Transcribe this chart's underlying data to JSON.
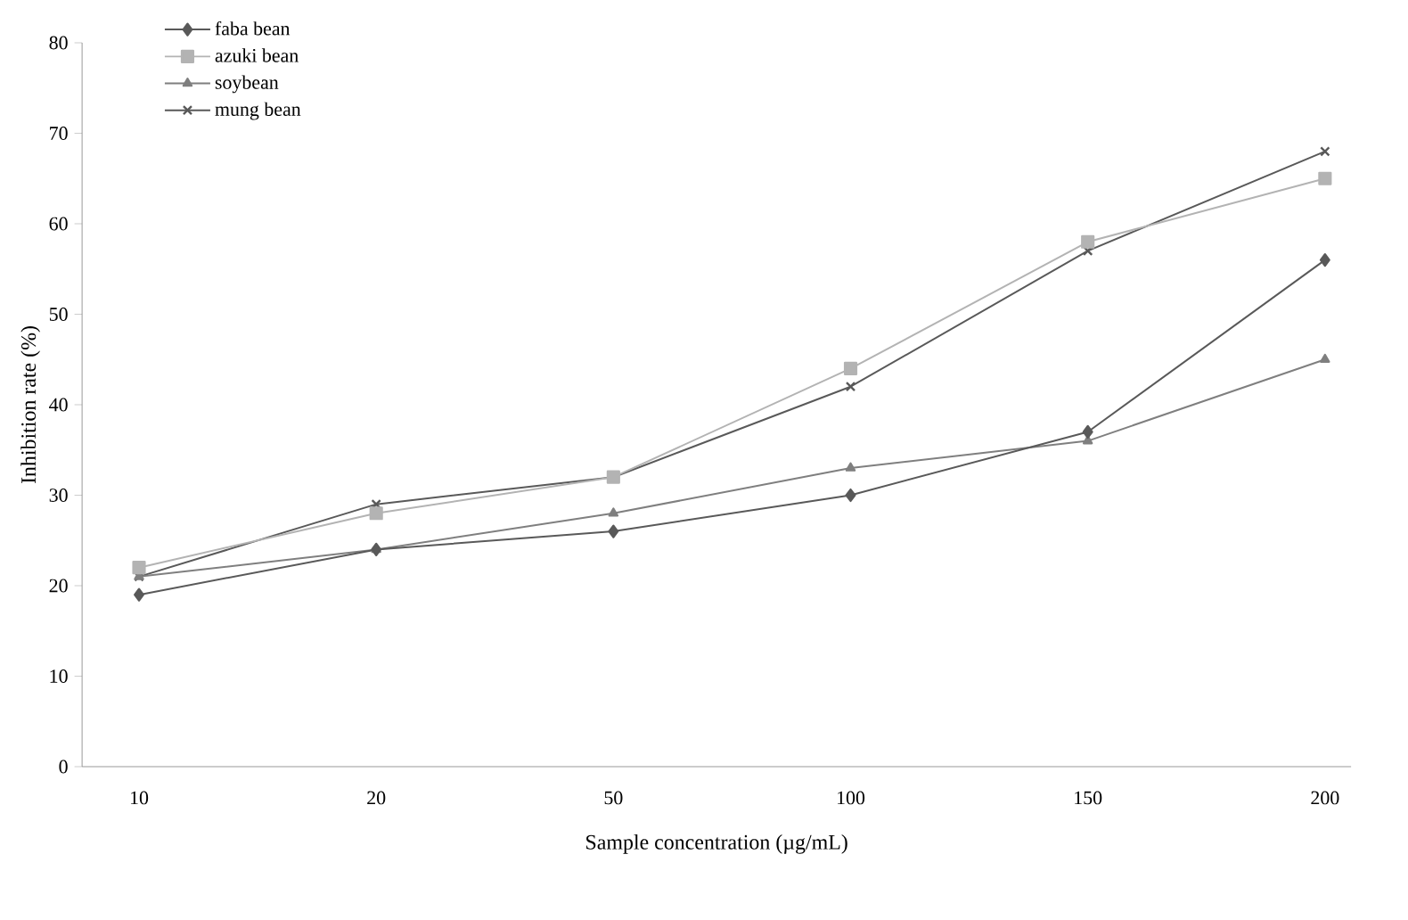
{
  "chart_data": {
    "type": "line",
    "xlabel": "Sample concentration (µg/mL)",
    "ylabel": "Inhibition rate (%)",
    "categories": [
      "10",
      "20",
      "50",
      "100",
      "150",
      "200"
    ],
    "series": [
      {
        "name": "faba bean",
        "color": "#595959",
        "marker": "diamond",
        "values": [
          19,
          24,
          26,
          30,
          37,
          56
        ]
      },
      {
        "name": "azuki bean",
        "color": "#b3b3b3",
        "marker": "square",
        "values": [
          22,
          28,
          32,
          44,
          58,
          65
        ]
      },
      {
        "name": "soybean",
        "color": "#7f7f7f",
        "marker": "triangle",
        "values": [
          21,
          24,
          28,
          33,
          36,
          45
        ]
      },
      {
        "name": "mung bean",
        "color": "#595959",
        "marker": "cross",
        "values": [
          21,
          29,
          32,
          42,
          57,
          68
        ]
      }
    ],
    "ylim": [
      0,
      80
    ],
    "yticks": [
      0,
      10,
      20,
      30,
      40,
      50,
      60,
      70,
      80
    ],
    "legend": "top left",
    "grid": false,
    "line_style": "solid"
  }
}
